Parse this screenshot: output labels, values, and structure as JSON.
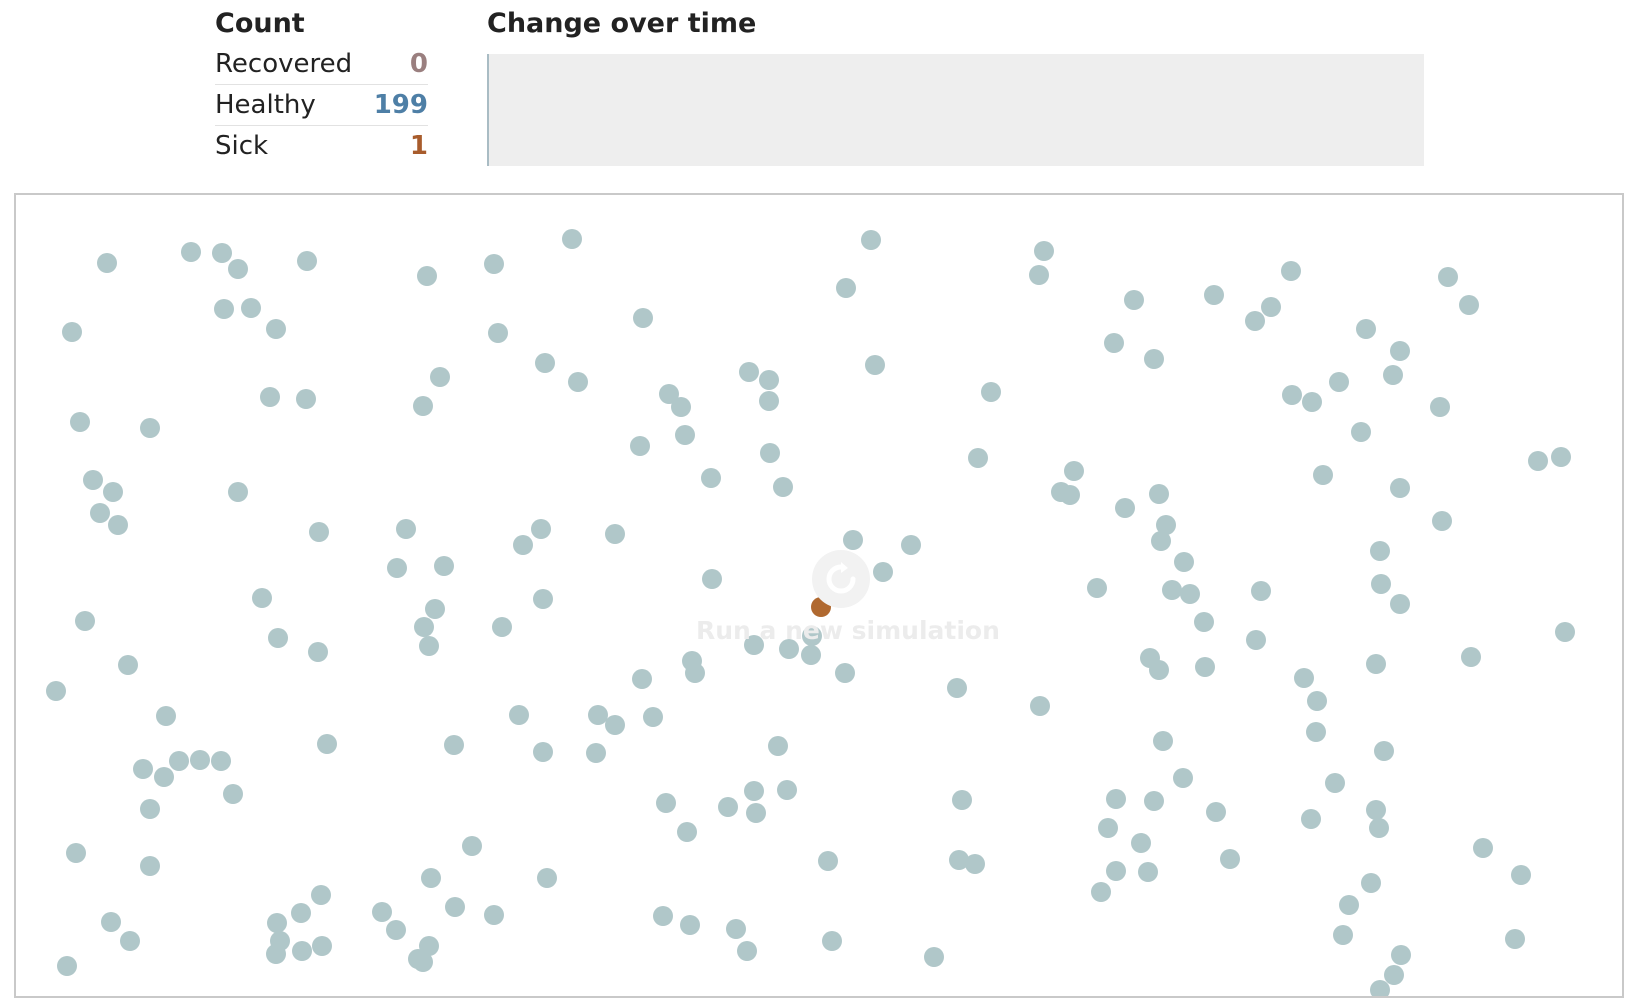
{
  "count": {
    "title": "Count",
    "rows": [
      {
        "label": "Recovered",
        "value": "0",
        "color": "#9a7f7f"
      },
      {
        "label": "Healthy",
        "value": "199",
        "color": "#4e7fa6"
      },
      {
        "label": "Sick",
        "value": "1",
        "color": "#a85c2c"
      }
    ]
  },
  "change": {
    "title": "Change over time"
  },
  "simulation": {
    "rerun_label": "Run a new simulation",
    "rerun_icon": "refresh-icon",
    "colors": {
      "healthy": "#b0c7c9",
      "sick": "#b06930",
      "recovered": "#9a7f7f"
    }
  }
}
